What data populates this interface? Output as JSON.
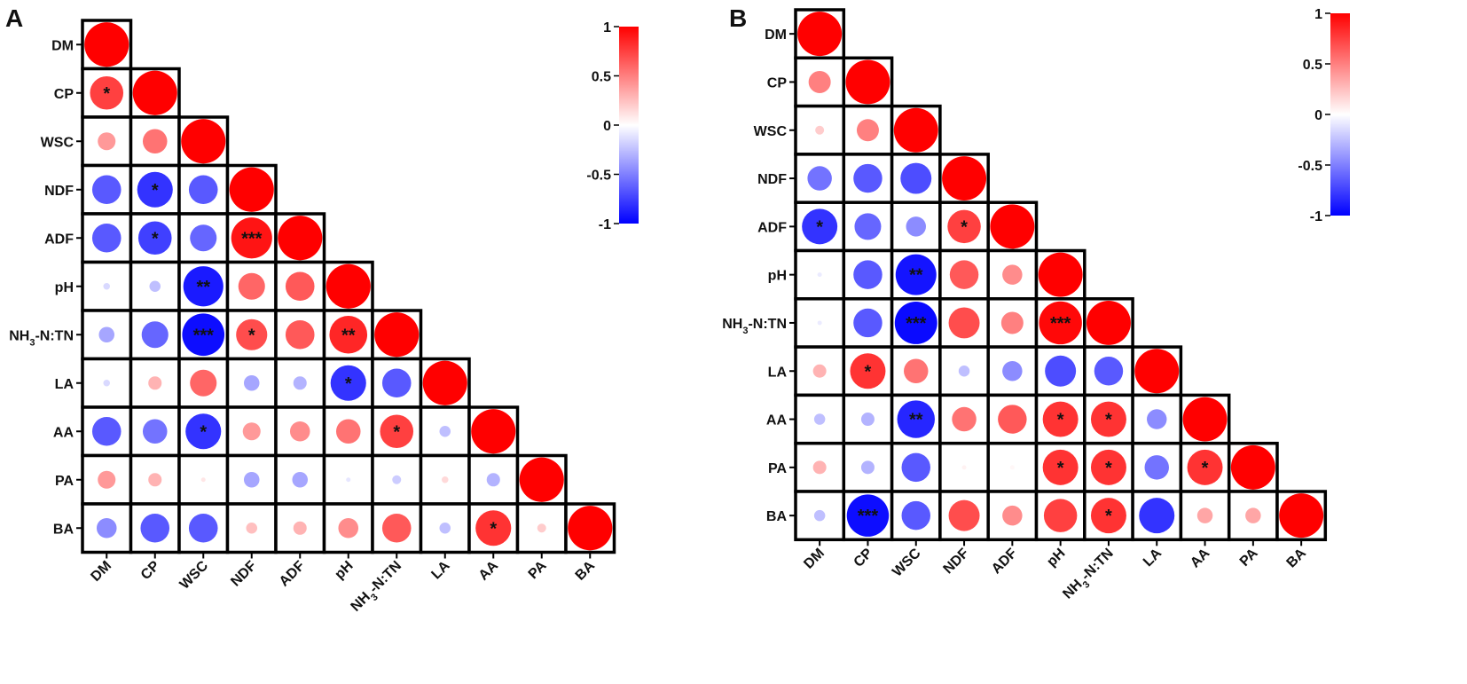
{
  "chart_data": [
    {
      "type": "heatmap",
      "panel_label": "A",
      "variables": [
        "DM",
        "CP",
        "WSC",
        "NDF",
        "ADF",
        "pH",
        "NH3-N:TN",
        "LA",
        "AA",
        "PA",
        "BA"
      ],
      "tick_labels": [
        "DM",
        "CP",
        "WSC",
        "NDF",
        "ADF",
        "pH",
        "NH3-N:TN",
        "LA",
        "AA",
        "PA",
        "BA"
      ],
      "matrix": [
        [
          1.0
        ],
        [
          0.75,
          1.0
        ],
        [
          0.4,
          0.55,
          1.0
        ],
        [
          -0.65,
          -0.8,
          -0.65,
          1.0
        ],
        [
          -0.65,
          -0.75,
          -0.6,
          0.92,
          1.0
        ],
        [
          -0.15,
          -0.25,
          -0.9,
          0.6,
          0.65,
          1.0
        ],
        [
          -0.35,
          -0.6,
          -0.95,
          0.7,
          0.65,
          0.85,
          1.0
        ],
        [
          -0.15,
          0.3,
          0.6,
          -0.35,
          -0.3,
          -0.8,
          -0.65,
          1.0
        ],
        [
          -0.65,
          -0.55,
          -0.8,
          0.4,
          0.45,
          0.55,
          0.75,
          -0.25,
          1.0
        ],
        [
          0.4,
          0.3,
          0.1,
          -0.35,
          -0.35,
          -0.1,
          -0.2,
          0.15,
          -0.3,
          1.0
        ],
        [
          -0.45,
          -0.65,
          -0.65,
          0.25,
          0.3,
          0.45,
          0.65,
          -0.25,
          0.8,
          0.2,
          1.0
        ]
      ],
      "significance": [
        [
          ""
        ],
        [
          "*",
          ""
        ],
        [
          "",
          "",
          ""
        ],
        [
          "",
          "*",
          "",
          ""
        ],
        [
          "",
          "*",
          "",
          "***",
          ""
        ],
        [
          "",
          "",
          "**",
          "",
          "",
          ""
        ],
        [
          "",
          "",
          "***",
          "*",
          "",
          "**",
          ""
        ],
        [
          "",
          "",
          "",
          "",
          "",
          "*",
          "",
          ""
        ],
        [
          "",
          "",
          "*",
          "",
          "",
          "",
          "*",
          "",
          ""
        ],
        [
          "",
          "",
          "",
          "",
          "",
          "",
          "",
          "",
          "",
          ""
        ],
        [
          "",
          "",
          "",
          "",
          "",
          "",
          "",
          "",
          "*",
          "",
          ""
        ]
      ],
      "colorbar": {
        "min": -1,
        "max": 1,
        "ticks": [
          "1",
          "0.5",
          "0",
          "-0.5",
          "-1"
        ],
        "low_color": "#0000ff",
        "mid_color": "#ffffff",
        "high_color": "#ff0000"
      }
    },
    {
      "type": "heatmap",
      "panel_label": "B",
      "variables": [
        "DM",
        "CP",
        "WSC",
        "NDF",
        "ADF",
        "pH",
        "NH3-N:TN",
        "LA",
        "AA",
        "PA",
        "BA"
      ],
      "tick_labels": [
        "DM",
        "CP",
        "WSC",
        "NDF",
        "ADF",
        "pH",
        "NH3-N:TN",
        "LA",
        "AA",
        "PA",
        "BA"
      ],
      "matrix": [
        [
          1.0
        ],
        [
          0.5,
          1.0
        ],
        [
          0.2,
          0.5,
          1.0
        ],
        [
          -0.55,
          -0.65,
          -0.7,
          1.0
        ],
        [
          -0.8,
          -0.6,
          -0.45,
          0.75,
          1.0
        ],
        [
          -0.08,
          -0.65,
          -0.92,
          0.65,
          0.45,
          1.0
        ],
        [
          -0.08,
          -0.65,
          -0.96,
          0.7,
          0.5,
          0.97,
          1.0
        ],
        [
          0.3,
          0.8,
          0.55,
          -0.25,
          -0.45,
          -0.7,
          -0.65,
          1.0
        ],
        [
          -0.25,
          -0.3,
          -0.85,
          0.55,
          0.65,
          0.8,
          0.8,
          -0.45,
          1.0
        ],
        [
          0.3,
          -0.3,
          -0.65,
          0.05,
          0.03,
          0.8,
          0.8,
          -0.55,
          0.8,
          1.0
        ],
        [
          -0.25,
          -0.95,
          -0.65,
          0.7,
          0.45,
          0.75,
          0.8,
          -0.8,
          0.35,
          0.35,
          1.0
        ]
      ],
      "significance": [
        [
          ""
        ],
        [
          "",
          ""
        ],
        [
          "",
          "",
          ""
        ],
        [
          "",
          "",
          "",
          ""
        ],
        [
          "*",
          "",
          "",
          "*",
          ""
        ],
        [
          "",
          "",
          "**",
          "",
          "",
          ""
        ],
        [
          "",
          "",
          "***",
          "",
          "",
          "***",
          ""
        ],
        [
          "",
          "*",
          "",
          "",
          "",
          "",
          "",
          ""
        ],
        [
          "",
          "",
          "**",
          "",
          "",
          "*",
          "*",
          "",
          ""
        ],
        [
          "",
          "",
          "",
          "",
          "",
          "*",
          "*",
          "",
          "*",
          ""
        ],
        [
          "",
          "***",
          "",
          "",
          "",
          "",
          "*",
          "",
          "",
          "",
          ""
        ]
      ],
      "colorbar": {
        "min": -1,
        "max": 1,
        "ticks": [
          "1",
          "0.5",
          "0",
          "-0.5",
          "-1"
        ],
        "low_color": "#0000ff",
        "mid_color": "#ffffff",
        "high_color": "#ff0000"
      }
    }
  ]
}
